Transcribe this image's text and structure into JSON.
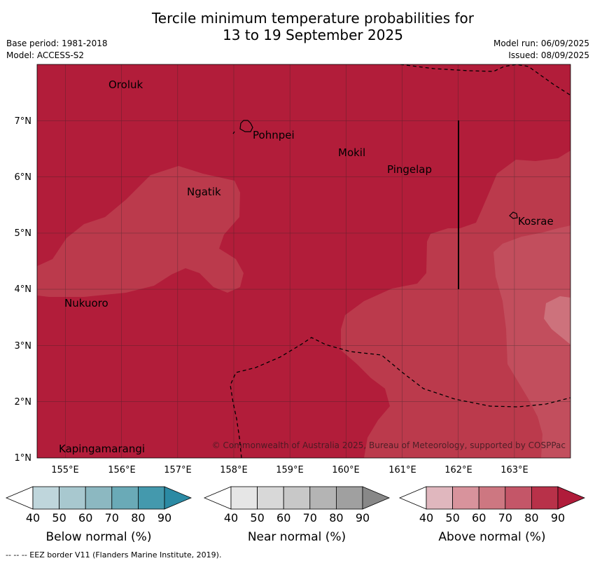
{
  "title_line1": "Tercile minimum temperature probabilities for",
  "title_line2": "13 to 19 September 2025",
  "meta_left": [
    "Base period: 1981-2018",
    "Model: ACCESS-S2"
  ],
  "meta_right": [
    "Model run: 06/09/2025",
    "Issued: 08/09/2025"
  ],
  "map": {
    "lon_range": [
      154.5,
      164.0
    ],
    "lat_range": [
      1.0,
      8.0
    ],
    "lon_ticks": [
      "155°E",
      "156°E",
      "157°E",
      "158°E",
      "159°E",
      "160°E",
      "161°E",
      "162°E",
      "163°E"
    ],
    "lat_ticks": [
      "7°N",
      "6°N",
      "5°N",
      "4°N",
      "3°N",
      "2°N",
      "1°N"
    ],
    "places": [
      {
        "name": "Oroluk",
        "lon": 155.8,
        "lat": 7.65
      },
      {
        "name": "Pohnpei",
        "lon": 158.2,
        "lat": 6.85
      },
      {
        "name": "Mokil",
        "lon": 159.8,
        "lat": 6.45
      },
      {
        "name": "Pingelap",
        "lon": 160.7,
        "lat": 6.15
      },
      {
        "name": "Ngatik",
        "lon": 157.1,
        "lat": 5.8
      },
      {
        "name": "Kosrae",
        "lon": 162.95,
        "lat": 5.25
      },
      {
        "name": "Nukuoro",
        "lon": 154.95,
        "lat": 3.85
      },
      {
        "name": "Kapingamarangi",
        "lon": 154.85,
        "lat": 1.25
      }
    ],
    "copyright": "© Commonwealth of Australia 2025, Bureau of Meteorology, supported by COSPPac"
  },
  "colorbars": [
    {
      "title": "Below normal (%)",
      "ticks": [
        "40",
        "50",
        "60",
        "70",
        "80",
        "90"
      ],
      "colors": [
        "#ffffff",
        "#bfd6dc",
        "#a8c8cf",
        "#8cb8c1",
        "#6aaab7",
        "#4499ad",
        "#2b8aa4"
      ]
    },
    {
      "title": "Near normal (%)",
      "ticks": [
        "40",
        "50",
        "60",
        "70",
        "80",
        "90"
      ],
      "colors": [
        "#ffffff",
        "#e6e6e6",
        "#d8d8d8",
        "#c8c8c8",
        "#b4b4b4",
        "#a0a0a0",
        "#888888"
      ]
    },
    {
      "title": "Above normal (%)",
      "ticks": [
        "40",
        "50",
        "60",
        "70",
        "80",
        "90"
      ],
      "colors": [
        "#ffffff",
        "#e0b7be",
        "#d8939c",
        "#cd7781",
        "#c45668",
        "#b83149",
        "#b01c3a"
      ]
    }
  ],
  "footer": "-- -- -- EEZ border V11 (Flanders Marine Institute, 2019)."
}
